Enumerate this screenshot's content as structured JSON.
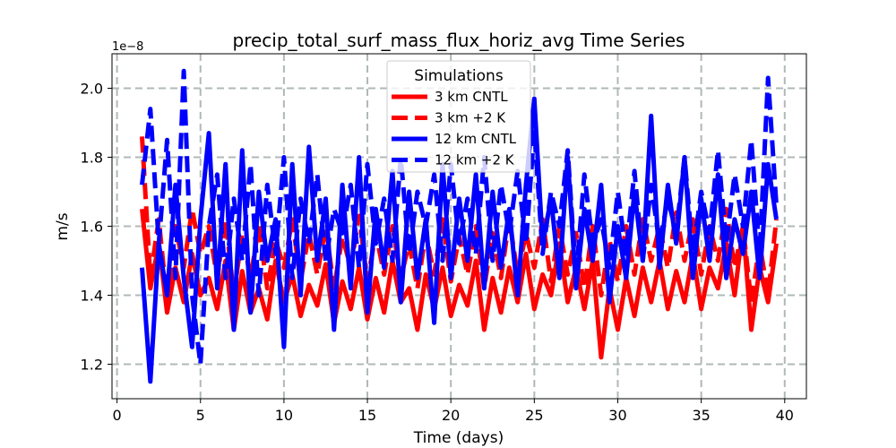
{
  "chart_data": {
    "type": "line",
    "title": "precip_total_surf_mass_flux_horiz_avg Time Series",
    "xlabel": "Time (days)",
    "ylabel": "m/s",
    "y_offset_label": "1e−8",
    "xlim": [
      -0.3,
      41.3
    ],
    "ylim": [
      1.1,
      2.1
    ],
    "xticks": [
      0,
      5,
      10,
      15,
      20,
      25,
      30,
      35,
      40
    ],
    "yticks": [
      1.2,
      1.4,
      1.6,
      1.8,
      2.0
    ],
    "ytick_labels": [
      "1.2",
      "1.4",
      "1.6",
      "1.8",
      "2.0"
    ],
    "grid": true,
    "legend": {
      "title": "Simulations",
      "placement": "top-center"
    },
    "series": [
      {
        "name": "3 km CNTL",
        "color": "#ff0000",
        "dash": "solid",
        "x": [
          1.5,
          2,
          2.5,
          3,
          3.5,
          4,
          4.5,
          5,
          5.5,
          6,
          6.5,
          7,
          7.5,
          8,
          8.5,
          9,
          9.5,
          10,
          10.5,
          11,
          11.5,
          12,
          12.5,
          13,
          13.5,
          14,
          14.5,
          15,
          15.5,
          16,
          16.5,
          17,
          17.5,
          18,
          18.5,
          19,
          19.5,
          20,
          20.5,
          21,
          21.5,
          22,
          22.5,
          23,
          23.5,
          24,
          24.5,
          25,
          25.5,
          26,
          26.5,
          27,
          27.5,
          28,
          28.5,
          29,
          29.5,
          30,
          30.5,
          31,
          31.5,
          32,
          32.5,
          33,
          33.5,
          34,
          34.5,
          35,
          35.5,
          36,
          36.5,
          37,
          37.5,
          38,
          38.5,
          39,
          39.5
        ],
        "values": [
          1.65,
          1.42,
          1.55,
          1.35,
          1.48,
          1.38,
          1.52,
          1.4,
          1.45,
          1.36,
          1.5,
          1.3,
          1.47,
          1.35,
          1.42,
          1.33,
          1.5,
          1.38,
          1.46,
          1.34,
          1.43,
          1.37,
          1.49,
          1.32,
          1.44,
          1.36,
          1.48,
          1.33,
          1.45,
          1.35,
          1.5,
          1.38,
          1.42,
          1.3,
          1.46,
          1.36,
          1.48,
          1.34,
          1.43,
          1.37,
          1.5,
          1.3,
          1.45,
          1.35,
          1.48,
          1.38,
          1.52,
          1.36,
          1.46,
          1.4,
          1.55,
          1.38,
          1.48,
          1.36,
          1.5,
          1.22,
          1.42,
          1.3,
          1.45,
          1.34,
          1.48,
          1.38,
          1.5,
          1.36,
          1.47,
          1.38,
          1.52,
          1.36,
          1.48,
          1.42,
          1.55,
          1.4,
          1.6,
          1.3,
          1.48,
          1.38,
          1.55
        ]
      },
      {
        "name": "3 km +2 K",
        "color": "#ff0000",
        "dash": "dashed",
        "x": [
          1.5,
          2,
          2.5,
          3,
          3.5,
          4,
          4.5,
          5,
          5.5,
          6,
          6.5,
          7,
          7.5,
          8,
          8.5,
          9,
          9.5,
          10,
          10.5,
          11,
          11.5,
          12,
          12.5,
          13,
          13.5,
          14,
          14.5,
          15,
          15.5,
          16,
          16.5,
          17,
          17.5,
          18,
          18.5,
          19,
          19.5,
          20,
          20.5,
          21,
          21.5,
          22,
          22.5,
          23,
          23.5,
          24,
          24.5,
          25,
          25.5,
          26,
          26.5,
          27,
          27.5,
          28,
          28.5,
          29,
          29.5,
          30,
          30.5,
          31,
          31.5,
          32,
          32.5,
          33,
          33.5,
          34,
          34.5,
          35,
          35.5,
          36,
          36.5,
          37,
          37.5,
          38,
          38.5,
          39,
          39.5
        ],
        "values": [
          1.86,
          1.45,
          1.62,
          1.38,
          1.6,
          1.48,
          1.65,
          1.52,
          1.6,
          1.45,
          1.62,
          1.4,
          1.58,
          1.45,
          1.6,
          1.42,
          1.56,
          1.48,
          1.62,
          1.44,
          1.58,
          1.46,
          1.6,
          1.42,
          1.57,
          1.48,
          1.63,
          1.44,
          1.58,
          1.46,
          1.6,
          1.45,
          1.55,
          1.42,
          1.58,
          1.46,
          1.62,
          1.44,
          1.57,
          1.46,
          1.6,
          1.42,
          1.58,
          1.45,
          1.62,
          1.46,
          1.58,
          1.48,
          1.62,
          1.44,
          1.6,
          1.46,
          1.58,
          1.42,
          1.6,
          1.4,
          1.56,
          1.44,
          1.6,
          1.46,
          1.62,
          1.5,
          1.6,
          1.48,
          1.64,
          1.5,
          1.62,
          1.46,
          1.6,
          1.5,
          1.65,
          1.48,
          1.6,
          1.38,
          1.55,
          1.4,
          1.62
        ]
      },
      {
        "name": "12 km CNTL",
        "color": "#0000ff",
        "dash": "solid",
        "x": [
          1.5,
          2,
          2.5,
          3,
          3.5,
          4,
          4.5,
          5,
          5.5,
          6,
          6.5,
          7,
          7.5,
          8,
          8.5,
          9,
          9.5,
          10,
          10.5,
          11,
          11.5,
          12,
          12.5,
          13,
          13.5,
          14,
          14.5,
          15,
          15.5,
          16,
          16.5,
          17,
          17.5,
          18,
          18.5,
          19,
          19.5,
          20,
          20.5,
          21,
          21.5,
          22,
          22.5,
          23,
          23.5,
          24,
          24.5,
          25,
          25.5,
          26,
          26.5,
          27,
          27.5,
          28,
          28.5,
          29,
          29.5,
          30,
          30.5,
          31,
          31.5,
          32,
          32.5,
          33,
          33.5,
          34,
          34.5,
          35,
          35.5,
          36,
          36.5,
          37,
          37.5,
          38,
          38.5,
          39,
          39.5
        ],
        "values": [
          1.48,
          1.15,
          1.55,
          1.4,
          1.72,
          1.45,
          1.25,
          1.62,
          1.87,
          1.42,
          1.78,
          1.3,
          1.82,
          1.35,
          1.7,
          1.5,
          1.62,
          1.25,
          1.78,
          1.4,
          1.83,
          1.5,
          1.68,
          1.3,
          1.72,
          1.42,
          1.8,
          1.35,
          1.65,
          1.48,
          1.76,
          1.38,
          1.7,
          1.45,
          1.62,
          1.32,
          1.78,
          1.45,
          1.68,
          1.5,
          1.75,
          1.42,
          1.7,
          1.48,
          1.65,
          1.4,
          1.72,
          1.97,
          1.55,
          1.68,
          1.45,
          1.8,
          1.42,
          1.65,
          1.5,
          1.72,
          1.38,
          1.6,
          1.45,
          1.7,
          1.5,
          1.92,
          1.48,
          1.72,
          1.55,
          1.8,
          1.45,
          1.68,
          1.5,
          1.75,
          1.45,
          1.62,
          1.52,
          1.7,
          1.45,
          1.78,
          1.62
        ]
      },
      {
        "name": "12 km +2 K",
        "color": "#0000ff",
        "dash": "dashed",
        "x": [
          1.5,
          2,
          2.5,
          3,
          3.5,
          4,
          4.5,
          5,
          5.5,
          6,
          6.5,
          7,
          7.5,
          8,
          8.5,
          9,
          9.5,
          10,
          10.5,
          11,
          11.5,
          12,
          12.5,
          13,
          13.5,
          14,
          14.5,
          15,
          15.5,
          16,
          16.5,
          17,
          17.5,
          18,
          18.5,
          19,
          19.5,
          20,
          20.5,
          21,
          21.5,
          22,
          22.5,
          23,
          23.5,
          24,
          24.5,
          25,
          25.5,
          26,
          26.5,
          27,
          27.5,
          28,
          28.5,
          29,
          29.5,
          30,
          30.5,
          31,
          31.5,
          32,
          32.5,
          33,
          33.5,
          34,
          34.5,
          35,
          35.5,
          36,
          36.5,
          37,
          37.5,
          38,
          38.5,
          39,
          39.5
        ],
        "values": [
          1.72,
          1.94,
          1.55,
          1.85,
          1.45,
          2.05,
          1.4,
          1.2,
          1.6,
          1.75,
          1.45,
          1.68,
          1.5,
          1.78,
          1.4,
          1.72,
          1.52,
          1.8,
          1.45,
          1.68,
          1.55,
          1.75,
          1.5,
          1.65,
          1.58,
          1.72,
          1.48,
          1.78,
          1.55,
          1.68,
          1.5,
          1.8,
          1.52,
          1.7,
          1.6,
          1.75,
          1.5,
          1.78,
          1.55,
          1.68,
          1.52,
          1.8,
          1.5,
          1.72,
          1.58,
          1.76,
          1.55,
          1.88,
          1.52,
          1.7,
          1.6,
          1.82,
          1.45,
          1.75,
          1.55,
          1.62,
          1.48,
          1.7,
          1.52,
          1.76,
          1.5,
          1.72,
          1.55,
          1.68,
          1.58,
          1.8,
          1.52,
          1.7,
          1.58,
          1.82,
          1.55,
          1.75,
          1.6,
          1.85,
          1.52,
          2.03,
          1.66
        ]
      }
    ]
  }
}
